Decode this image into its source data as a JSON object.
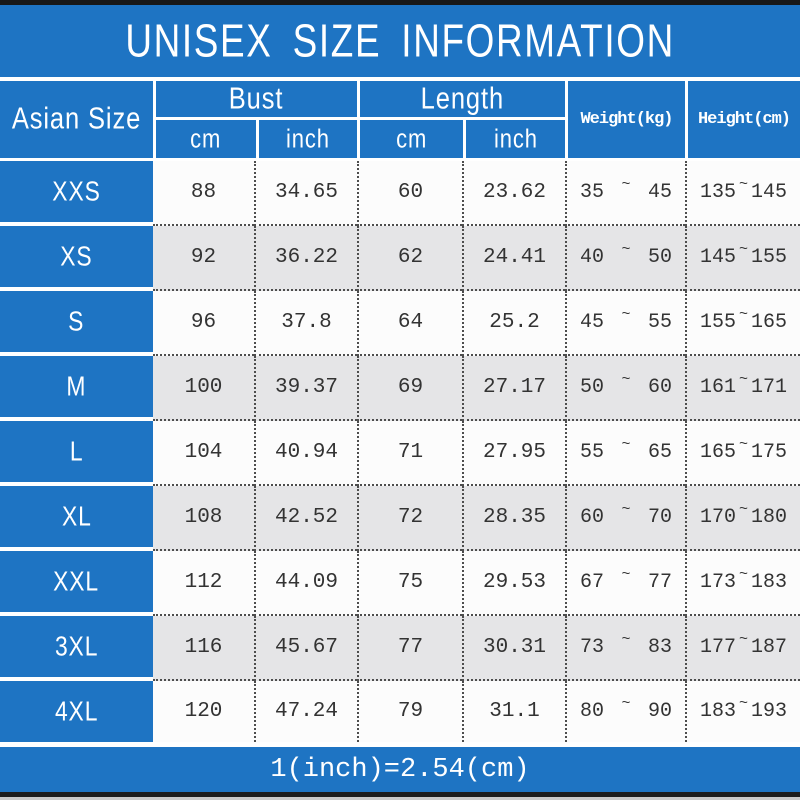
{
  "title": "UNISEX SIZE INFORMATION",
  "header": {
    "size_col": "Asian Size",
    "bust": {
      "label": "Bust",
      "units": [
        "cm",
        "inch"
      ]
    },
    "length": {
      "label": "Length",
      "units": [
        "cm",
        "inch"
      ]
    },
    "weight": "Weight(kg)",
    "height": "Height(cm)"
  },
  "symbols": {
    "tilde": "~"
  },
  "rows": [
    {
      "size": "XXS",
      "bust_cm": "88",
      "bust_in": "34.65",
      "len_cm": "60",
      "len_in": "23.62",
      "w_min": "35",
      "w_max": "45",
      "h_min": "135",
      "h_max": "145"
    },
    {
      "size": "XS",
      "bust_cm": "92",
      "bust_in": "36.22",
      "len_cm": "62",
      "len_in": "24.41",
      "w_min": "40",
      "w_max": "50",
      "h_min": "145",
      "h_max": "155"
    },
    {
      "size": "S",
      "bust_cm": "96",
      "bust_in": "37.8",
      "len_cm": "64",
      "len_in": "25.2",
      "w_min": "45",
      "w_max": "55",
      "h_min": "155",
      "h_max": "165"
    },
    {
      "size": "M",
      "bust_cm": "100",
      "bust_in": "39.37",
      "len_cm": "69",
      "len_in": "27.17",
      "w_min": "50",
      "w_max": "60",
      "h_min": "161",
      "h_max": "171"
    },
    {
      "size": "L",
      "bust_cm": "104",
      "bust_in": "40.94",
      "len_cm": "71",
      "len_in": "27.95",
      "w_min": "55",
      "w_max": "65",
      "h_min": "165",
      "h_max": "175"
    },
    {
      "size": "XL",
      "bust_cm": "108",
      "bust_in": "42.52",
      "len_cm": "72",
      "len_in": "28.35",
      "w_min": "60",
      "w_max": "70",
      "h_min": "170",
      "h_max": "180"
    },
    {
      "size": "XXL",
      "bust_cm": "112",
      "bust_in": "44.09",
      "len_cm": "75",
      "len_in": "29.53",
      "w_min": "67",
      "w_max": "77",
      "h_min": "173",
      "h_max": "183"
    },
    {
      "size": "3XL",
      "bust_cm": "116",
      "bust_in": "45.67",
      "len_cm": "77",
      "len_in": "30.31",
      "w_min": "73",
      "w_max": "83",
      "h_min": "177",
      "h_max": "187"
    },
    {
      "size": "4XL",
      "bust_cm": "120",
      "bust_in": "47.24",
      "len_cm": "79",
      "len_in": "31.1",
      "w_min": "80",
      "w_max": "90",
      "h_min": "183",
      "h_max": "193"
    }
  ],
  "footer": {
    "note": "1(inch)=2.54(cm)"
  },
  "colors": {
    "blue": "#1e74c3",
    "row_alt": "#e5e5e7",
    "row_white": "#fcfcfc",
    "line_white": "#ffffff",
    "dotted_line": "#4d4d4d",
    "border_black": "#181818"
  },
  "chart_data": {
    "type": "table",
    "title": "UNISEX SIZE INFORMATION",
    "columns": [
      "Asian Size",
      "Bust cm",
      "Bust inch",
      "Length cm",
      "Length inch",
      "Weight(kg)",
      "Height(cm)"
    ],
    "rows": [
      [
        "XXS",
        88,
        34.65,
        60,
        23.62,
        "35~45",
        "135~145"
      ],
      [
        "XS",
        92,
        36.22,
        62,
        24.41,
        "40~50",
        "145~155"
      ],
      [
        "S",
        96,
        37.8,
        64,
        25.2,
        "45~55",
        "155~165"
      ],
      [
        "M",
        100,
        39.37,
        69,
        27.17,
        "50~60",
        "161~171"
      ],
      [
        "L",
        104,
        40.94,
        71,
        27.95,
        "55~65",
        "165~175"
      ],
      [
        "XL",
        108,
        42.52,
        72,
        28.35,
        "60~70",
        "170~180"
      ],
      [
        "XXL",
        112,
        44.09,
        75,
        29.53,
        "67~77",
        "173~183"
      ],
      [
        "3XL",
        116,
        45.67,
        77,
        30.31,
        "73~83",
        "177~187"
      ],
      [
        "4XL",
        120,
        47.24,
        79,
        31.1,
        "80~90",
        "183~193"
      ]
    ],
    "note": "1(inch)=2.54(cm)"
  }
}
